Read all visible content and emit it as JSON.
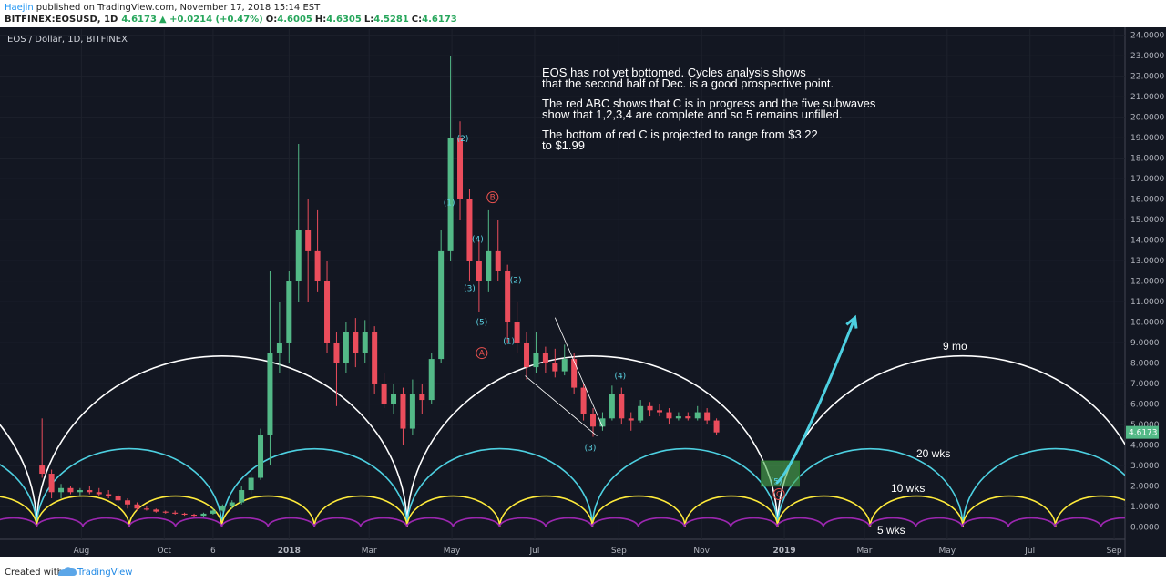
{
  "header": {
    "author": "Haejin",
    "published": "published on TradingView.com, November 17, 2018 15:14 EST",
    "symbol": "BITFINEX:EOSUSD, 1D",
    "last": "4.6173",
    "change": "▲ +0.0214 (+0.47%)",
    "open_label": "O:",
    "open": "4.6005",
    "high_label": "H:",
    "high": "4.6305",
    "low_label": "L:",
    "low": "4.5281",
    "close_label": "C:",
    "close": "4.6173"
  },
  "chart_data": {
    "type": "candlestick",
    "title": "EOS / Dollar, 1D, BITFINEX",
    "up_color": "#53b987",
    "down_color": "#eb4d5c",
    "grid": true,
    "x": [
      "2017-07-03",
      "2017-07-10",
      "2017-07-17",
      "2017-07-24",
      "2017-07-31",
      "2017-08-07",
      "2017-08-14",
      "2017-08-21",
      "2017-08-28",
      "2017-09-04",
      "2017-09-11",
      "2017-09-18",
      "2017-09-25",
      "2017-10-02",
      "2017-10-09",
      "2017-10-16",
      "2017-10-23",
      "2017-10-30",
      "2017-11-06",
      "2017-11-13",
      "2017-11-20",
      "2017-11-27",
      "2017-12-04",
      "2017-12-11",
      "2017-12-18",
      "2017-12-25",
      "2018-01-01",
      "2018-01-08",
      "2018-01-15",
      "2018-01-22",
      "2018-01-29",
      "2018-02-05",
      "2018-02-12",
      "2018-02-19",
      "2018-02-26",
      "2018-03-05",
      "2018-03-12",
      "2018-03-19",
      "2018-03-26",
      "2018-04-02",
      "2018-04-09",
      "2018-04-16",
      "2018-04-23",
      "2018-04-30",
      "2018-05-07",
      "2018-05-14",
      "2018-05-21",
      "2018-05-28",
      "2018-06-04",
      "2018-06-11",
      "2018-06-18",
      "2018-06-25",
      "2018-07-02",
      "2018-07-09",
      "2018-07-16",
      "2018-07-23",
      "2018-07-30",
      "2018-08-06",
      "2018-08-13",
      "2018-08-20",
      "2018-08-27",
      "2018-09-03",
      "2018-09-10",
      "2018-09-17",
      "2018-09-24",
      "2018-10-01",
      "2018-10-08",
      "2018-10-15",
      "2018-10-22",
      "2018-10-29",
      "2018-11-05",
      "2018-11-12"
    ],
    "open": [
      3.0,
      2.6,
      1.7,
      1.9,
      1.7,
      1.8,
      1.7,
      1.6,
      1.5,
      1.3,
      1.1,
      0.9,
      0.85,
      0.75,
      0.7,
      0.65,
      0.6,
      0.55,
      0.65,
      0.8,
      1.0,
      1.2,
      1.8,
      2.4,
      4.5,
      8.5,
      9.0,
      12.0,
      14.5,
      13.5,
      12.0,
      9.0,
      8.0,
      9.5,
      8.5,
      9.5,
      7.0,
      6.0,
      6.5,
      4.8,
      6.5,
      6.2,
      8.2,
      13.5,
      19.0,
      16.0,
      13.0,
      12.0,
      13.5,
      12.5,
      10.0,
      9.0,
      7.8,
      8.5,
      8.0,
      7.6,
      8.2,
      6.8,
      5.5,
      4.9,
      5.3,
      6.5,
      5.3,
      5.2,
      5.9,
      5.7,
      5.6,
      5.3,
      5.4,
      5.3,
      5.6,
      5.2
    ],
    "high": [
      5.3,
      2.8,
      2.1,
      2.0,
      1.9,
      2.0,
      1.9,
      1.8,
      1.6,
      1.4,
      1.2,
      1.0,
      0.9,
      0.8,
      0.8,
      0.7,
      0.65,
      0.7,
      0.9,
      1.1,
      1.3,
      2.0,
      2.6,
      4.8,
      12.5,
      11.0,
      12.5,
      18.7,
      16.0,
      15.5,
      13.0,
      9.5,
      10.0,
      10.2,
      10.1,
      9.8,
      7.5,
      7.0,
      6.8,
      7.2,
      7.0,
      8.5,
      14.5,
      23.0,
      19.8,
      16.5,
      14.0,
      15.5,
      15.0,
      12.8,
      11.0,
      9.5,
      9.5,
      8.8,
      8.7,
      8.9,
      8.5,
      7.0,
      5.8,
      5.6,
      6.9,
      6.8,
      5.6,
      6.2,
      6.1,
      6.0,
      5.8,
      5.6,
      5.6,
      5.9,
      5.8,
      5.3
    ],
    "low": [
      2.4,
      1.4,
      1.4,
      1.6,
      1.5,
      1.6,
      1.5,
      1.4,
      1.2,
      0.9,
      0.8,
      0.8,
      0.7,
      0.65,
      0.6,
      0.55,
      0.5,
      0.5,
      0.6,
      0.75,
      0.9,
      1.1,
      1.6,
      2.3,
      3.0,
      7.5,
      8.0,
      11.0,
      11.0,
      11.5,
      8.5,
      5.9,
      7.5,
      7.8,
      8.0,
      6.5,
      5.8,
      5.5,
      4.0,
      4.5,
      5.5,
      6.0,
      8.0,
      13.0,
      15.0,
      12.0,
      10.5,
      11.5,
      12.0,
      9.0,
      8.5,
      7.2,
      7.5,
      7.5,
      7.3,
      7.4,
      6.5,
      5.2,
      4.4,
      4.7,
      5.2,
      5.0,
      4.7,
      5.1,
      5.4,
      5.4,
      5.0,
      5.2,
      5.2,
      5.2,
      5.0,
      4.5
    ],
    "close": [
      2.6,
      1.7,
      1.9,
      1.7,
      1.8,
      1.7,
      1.6,
      1.5,
      1.3,
      1.1,
      0.9,
      0.85,
      0.75,
      0.7,
      0.65,
      0.6,
      0.55,
      0.65,
      0.8,
      1.0,
      1.2,
      1.8,
      2.4,
      4.5,
      8.5,
      9.0,
      12.0,
      14.5,
      13.5,
      12.0,
      9.0,
      8.0,
      9.5,
      8.5,
      9.5,
      7.0,
      6.0,
      6.5,
      4.8,
      6.5,
      6.2,
      8.2,
      13.5,
      19.0,
      16.0,
      13.0,
      12.0,
      13.5,
      12.5,
      10.0,
      9.0,
      7.8,
      8.5,
      8.0,
      7.6,
      8.2,
      6.8,
      5.5,
      4.9,
      5.3,
      6.5,
      5.3,
      5.2,
      5.9,
      5.7,
      5.6,
      5.3,
      5.4,
      5.3,
      5.6,
      5.2,
      4.6173
    ],
    "xlim": [
      "2017-06-02",
      "2019-09-09"
    ],
    "xticks": [
      {
        "value": "2017-08-01",
        "label": "Aug"
      },
      {
        "value": "2017-10-01",
        "label": "Oct"
      },
      {
        "value": "2017-11-06",
        "label": "6"
      },
      {
        "value": "2018-01-01",
        "label": "2018"
      },
      {
        "value": "2018-03-01",
        "label": "Mar"
      },
      {
        "value": "2018-05-01",
        "label": "May"
      },
      {
        "value": "2018-07-01",
        "label": "Jul"
      },
      {
        "value": "2018-09-01",
        "label": "Sep"
      },
      {
        "value": "2018-11-01",
        "label": "Nov"
      },
      {
        "value": "2019-01-01",
        "label": "2019"
      },
      {
        "value": "2019-03-01",
        "label": "Mar"
      },
      {
        "value": "2019-05-01",
        "label": "May"
      },
      {
        "value": "2019-07-01",
        "label": "Jul"
      },
      {
        "value": "2019-09-01",
        "label": "Sep"
      }
    ],
    "ylim": [
      -0.6,
      24.3
    ],
    "yticks": [
      {
        "value": 0,
        "label": "0.0000"
      },
      {
        "value": 1,
        "label": "1.0000"
      },
      {
        "value": 2,
        "label": "2.0000"
      },
      {
        "value": 3,
        "label": "3.0000"
      },
      {
        "value": 4,
        "label": "4.0000"
      },
      {
        "value": 5,
        "label": "5.0000"
      },
      {
        "value": 6,
        "label": "6.0000"
      },
      {
        "value": 7,
        "label": "7.0000"
      },
      {
        "value": 8,
        "label": "8.0000"
      },
      {
        "value": 9,
        "label": "9.0000"
      },
      {
        "value": 10,
        "label": "10.0000"
      },
      {
        "value": 11,
        "label": "11.0000"
      },
      {
        "value": 12,
        "label": "12.0000"
      },
      {
        "value": 13,
        "label": "13.0000"
      },
      {
        "value": 14,
        "label": "14.0000"
      },
      {
        "value": 15,
        "label": "15.0000"
      },
      {
        "value": 16,
        "label": "16.0000"
      },
      {
        "value": 17,
        "label": "17.0000"
      },
      {
        "value": 18,
        "label": "18.0000"
      },
      {
        "value": 19,
        "label": "19.0000"
      },
      {
        "value": 20,
        "label": "20.0000"
      },
      {
        "value": 21,
        "label": "21.0000"
      },
      {
        "value": 22,
        "label": "22.0000"
      },
      {
        "value": 23,
        "label": "23.0000"
      },
      {
        "value": 24,
        "label": "24.0000"
      }
    ],
    "cycles": [
      {
        "label": "9 mo",
        "color": "#ffffff",
        "start": "2017-06-29",
        "period_days": 273,
        "peak": 8.35
      },
      {
        "label": "20 wks",
        "color": "#4dd0e1",
        "start": "2017-06-29",
        "period_days": 136.5,
        "peak": 3.82
      },
      {
        "label": "10 wks",
        "color": "#ffeb3b",
        "start": "2017-06-29",
        "period_days": 68.25,
        "peak": 1.51
      },
      {
        "label": "5 wks",
        "color": "#9c27b0",
        "start": "2017-06-29",
        "period_days": 34.1,
        "peak": 0.44
      }
    ],
    "wave_labels": [
      {
        "text": "(1)",
        "date": "2018-04-29",
        "price": 15.82,
        "color": "#5cd6e6"
      },
      {
        "text": "(2)",
        "date": "2018-05-09",
        "price": 18.97,
        "color": "#5cd6e6"
      },
      {
        "text": "(3)",
        "date": "2018-05-14",
        "price": 11.64,
        "color": "#5cd6e6"
      },
      {
        "text": "(4)",
        "date": "2018-05-20",
        "price": 14.04,
        "color": "#5cd6e6"
      },
      {
        "text": "(5)",
        "date": "2018-05-23",
        "price": 10.0,
        "color": "#5cd6e6"
      },
      {
        "text": "A",
        "date": "2018-05-23",
        "price": 8.49,
        "color": "#ef5350"
      },
      {
        "text": "B",
        "date": "2018-05-31",
        "price": 16.09,
        "color": "#ef5350"
      },
      {
        "text": "(1)",
        "date": "2018-06-12",
        "price": 9.07,
        "color": "#5cd6e6"
      },
      {
        "text": "(2)",
        "date": "2018-06-17",
        "price": 12.04,
        "color": "#5cd6e6"
      },
      {
        "text": "(3)",
        "date": "2018-08-11",
        "price": 3.87,
        "color": "#5cd6e6"
      },
      {
        "text": "(4)",
        "date": "2018-09-02",
        "price": 7.38,
        "color": "#5cd6e6"
      },
      {
        "text": "(5)",
        "date": "2018-12-26",
        "price": 2.22,
        "color": "#5cd6e6"
      },
      {
        "text": "C",
        "date": "2018-12-28",
        "price": 1.6,
        "color": "#ef5350"
      }
    ],
    "trend_lines": [
      {
        "from": [
          "2018-06-24",
          7.38
        ],
        "to": [
          "2018-08-16",
          4.44
        ],
        "color": "#ffffff"
      },
      {
        "from": [
          "2018-07-16",
          10.22
        ],
        "to": [
          "2018-08-20",
          4.89
        ],
        "color": "#ffffff"
      }
    ],
    "arrow": {
      "from": [
        "2018-12-26",
        2.13
      ],
      "to": [
        "2019-02-22",
        10.22
      ],
      "color": "#4dd0e1"
    },
    "target_box": {
      "from": "2018-12-15",
      "to": "2019-01-12",
      "high": 3.22,
      "low": 1.99,
      "color": "#4caf50"
    },
    "note": [
      "EOS has not yet bottomed. Cycles analysis shows",
      "that the second half of Dec. is a good prospective point.",
      "The red ABC shows that C is in progress and the five subwaves",
      "show that 1,2,3,4 are complete and so 5 remains unfilled.",
      "The bottom of red C is projected to range from $3.22",
      "to $1.99"
    ]
  },
  "footer": {
    "created": "Created with",
    "brand": "TradingView"
  }
}
